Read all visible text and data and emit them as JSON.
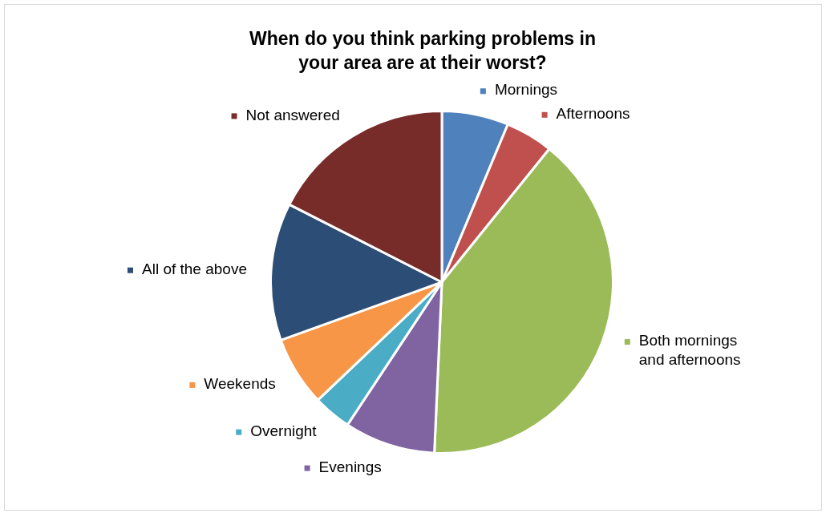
{
  "chart_data": {
    "type": "pie",
    "title": "When do you think parking problems in your area are at their worst?",
    "categories": [
      "Mornings",
      "Afternoons",
      "Both mornings and afternoons",
      "Evenings",
      "Overnight",
      "Weekends",
      "All of the above",
      "Not answered"
    ],
    "values": [
      6.3,
      4.5,
      39.9,
      8.6,
      3.6,
      6.6,
      13.0,
      17.5
    ],
    "colors": [
      "#4f81bd",
      "#c0504d",
      "#9bbb59",
      "#8064a2",
      "#4bacc6",
      "#f79646",
      "#2c4d75",
      "#772c2a"
    ],
    "legend": "right"
  }
}
